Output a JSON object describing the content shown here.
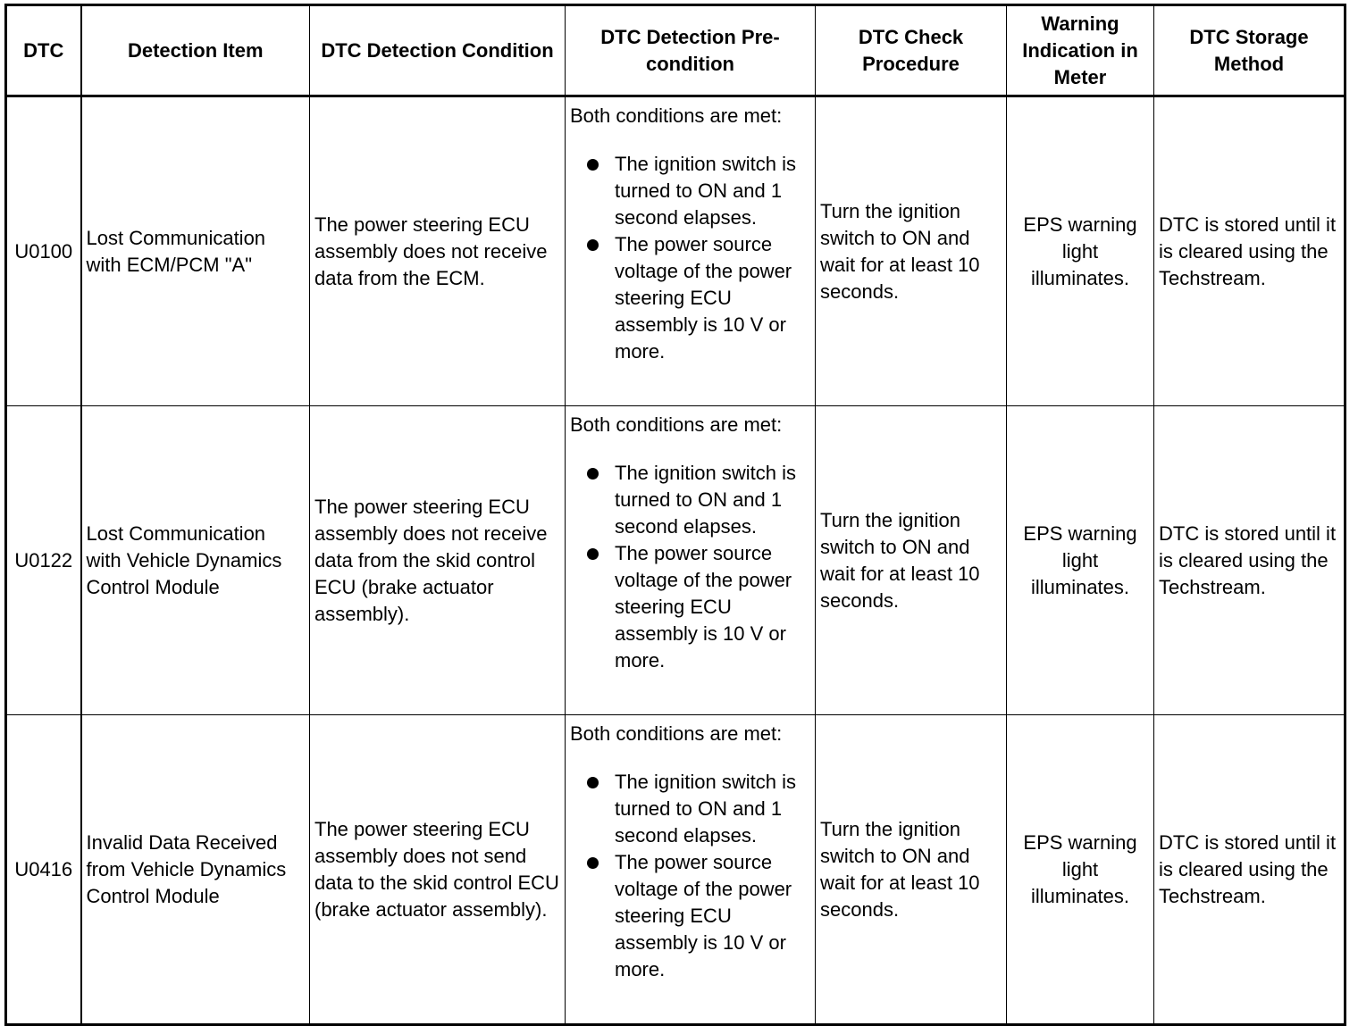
{
  "headers": [
    "DTC",
    "Detection Item",
    "DTC Detection Condition",
    "DTC Detection Pre-condition",
    "DTC Check Procedure",
    "Warning Indication in Meter",
    "DTC Storage Method"
  ],
  "rows": [
    {
      "dtc": "U0100",
      "item": "Lost Communication with ECM/PCM \"A\"",
      "condition": "The power steering ECU assembly does not receive data from the ECM.",
      "precondition_intro": "Both conditions are met:",
      "precondition_items": [
        "The ignition switch is turned to ON and 1 second elapses.",
        "The power source voltage of the power steering ECU assembly is 10 V or more."
      ],
      "procedure": "Turn the ignition switch to ON and wait for at least 10 seconds.",
      "warning": "EPS warning light illuminates.",
      "storage": "DTC is stored until it is cleared using the Techstream."
    },
    {
      "dtc": "U0122",
      "item": "Lost Communication with Vehicle Dynamics Control Module",
      "condition": "The power steering ECU assembly does not receive data from the skid control ECU (brake actuator assembly).",
      "precondition_intro": "Both conditions are met:",
      "precondition_items": [
        "The ignition switch is turned to ON and 1 second elapses.",
        "The power source voltage of the power steering ECU assembly is 10 V or more."
      ],
      "procedure": "Turn the ignition switch to ON and wait for at least 10 seconds.",
      "warning": "EPS warning light illuminates.",
      "storage": "DTC is stored until it is cleared using the Techstream."
    },
    {
      "dtc": "U0416",
      "item": "Invalid Data Received from Vehicle Dynamics Control Module",
      "condition": "The power steering ECU assembly does not send data to the skid control ECU (brake actuator assembly).",
      "precondition_intro": "Both conditions are met:",
      "precondition_items": [
        "The ignition switch is turned to ON and 1 second elapses.",
        "The power source voltage of the power steering ECU assembly is 10 V or more."
      ],
      "procedure": "Turn the ignition switch to ON and wait for at least 10 seconds.",
      "warning": "EPS warning light illuminates.",
      "storage": "DTC is stored until it is cleared using the Techstream."
    }
  ]
}
